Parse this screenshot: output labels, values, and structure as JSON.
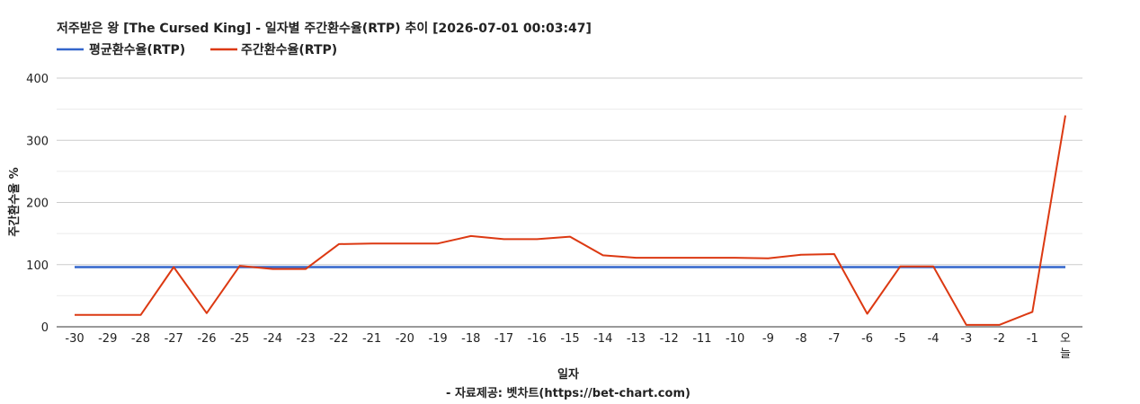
{
  "chart_data": {
    "type": "line",
    "title": "저주받은 왕 [The Cursed King] - 일자별 주간환수율(RTP) 추이 [2026-07-01 00:03:47]",
    "xlabel": "일자",
    "ylabel": "주간환수율 %",
    "source": "- 자료제공: 벳차트(https://bet-chart.com)",
    "ylim": [
      0,
      400
    ],
    "yticks": [
      "0",
      "100",
      "200",
      "300",
      "400"
    ],
    "grid": true,
    "legend_position": "top-left",
    "x": [
      "-30",
      "-29",
      "-28",
      "-27",
      "-26",
      "-25",
      "-24",
      "-23",
      "-22",
      "-21",
      "-20",
      "-19",
      "-18",
      "-17",
      "-16",
      "-15",
      "-14",
      "-13",
      "-12",
      "-11",
      "-10",
      "-9",
      "-8",
      "-7",
      "-6",
      "-5",
      "-4",
      "-3",
      "-2",
      "-1",
      "오늘"
    ],
    "series": [
      {
        "name": "평균환수율(RTP)",
        "color": "#3366cc",
        "values": [
          96,
          96,
          96,
          96,
          96,
          96,
          96,
          96,
          96,
          96,
          96,
          96,
          96,
          96,
          96,
          96,
          96,
          96,
          96,
          96,
          96,
          96,
          96,
          96,
          96,
          96,
          96,
          96,
          96,
          96,
          96
        ]
      },
      {
        "name": "주간환수율(RTP)",
        "color": "#dc3912",
        "values": [
          19,
          19,
          19,
          96,
          22,
          98,
          93,
          93,
          133,
          134,
          134,
          134,
          146,
          141,
          141,
          145,
          115,
          111,
          111,
          111,
          111,
          110,
          116,
          117,
          21,
          97,
          97,
          3,
          3,
          24,
          340
        ]
      }
    ]
  }
}
